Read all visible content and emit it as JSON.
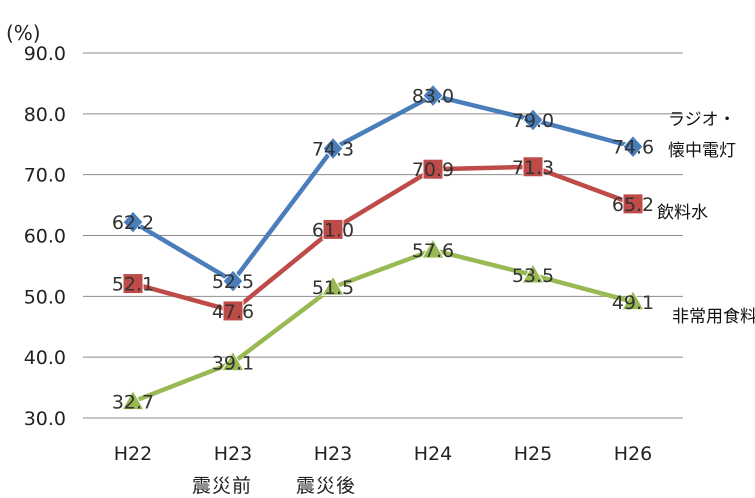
{
  "chart_data": {
    "type": "line",
    "unit_label": "(%)",
    "categories": [
      "H22",
      "H23",
      "H23",
      "H24",
      "H25",
      "H26"
    ],
    "sub_labels": [
      "震災前",
      "震災後"
    ],
    "ylim": [
      30,
      90
    ],
    "yticks": [
      "30.0",
      "40.0",
      "50.0",
      "60.0",
      "70.0",
      "80.0",
      "90.0"
    ],
    "grid": true,
    "series": [
      {
        "key": "radio",
        "name": "ラジオ・懐中電灯",
        "name_lines": [
          "ラジオ・",
          "懐中電灯"
        ],
        "color": "#4a7ebb",
        "marker": "diamond",
        "values": [
          62.2,
          52.5,
          74.3,
          83.0,
          79.0,
          74.6
        ],
        "labels": [
          "62.2",
          "52.5",
          "74.3",
          "83.0",
          "79.0",
          "74.6"
        ]
      },
      {
        "key": "water",
        "name": "飲料水",
        "name_lines": [
          "飲料水"
        ],
        "color": "#be4b48",
        "marker": "square",
        "values": [
          52.1,
          47.6,
          61.0,
          70.9,
          71.3,
          65.2
        ],
        "labels": [
          "52.1",
          "47.6",
          "61.0",
          "70.9",
          "71.3",
          "65.2"
        ]
      },
      {
        "key": "food",
        "name": "非常用食料",
        "name_lines": [
          "非常用食料"
        ],
        "color": "#98b954",
        "marker": "triangle",
        "values": [
          32.7,
          39.1,
          51.5,
          57.6,
          53.5,
          49.1
        ],
        "labels": [
          "32.7",
          "39.1",
          "51.5",
          "57.6",
          "53.5",
          "49.1"
        ]
      }
    ]
  }
}
